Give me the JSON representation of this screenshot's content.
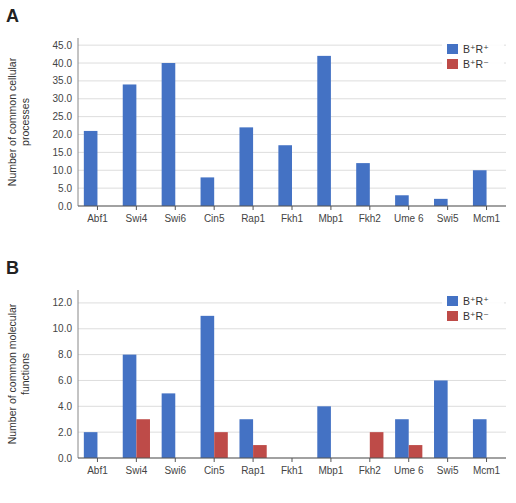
{
  "chart_data": [
    {
      "type": "bar",
      "title": "A",
      "categories": [
        "Abf1",
        "Swi4",
        "Swi6",
        "Cin5",
        "Rap1",
        "Fkh1",
        "Mbp1",
        "Fkh2",
        "Ume 6",
        "Swi5",
        "Mcm1"
      ],
      "series": [
        {
          "name": "B⁺R⁺",
          "color": "#4472C4",
          "values": [
            21,
            34,
            40,
            8,
            22,
            17,
            42,
            12,
            3,
            2,
            10
          ]
        },
        {
          "name": "B⁺R⁻",
          "color": "#BE4B48",
          "values": [
            0,
            0,
            0,
            0,
            0,
            0,
            0,
            0,
            0,
            0,
            0
          ]
        }
      ],
      "ylabel": "Number of common cellular\nprocesses",
      "ylim": [
        0,
        47
      ],
      "yticks": [
        {
          "value": 0,
          "label": "0.0"
        },
        {
          "value": 5,
          "label": "5.0"
        },
        {
          "value": 10,
          "label": "10.0"
        },
        {
          "value": 15,
          "label": "15.0"
        },
        {
          "value": 20,
          "label": "20.0"
        },
        {
          "value": 25,
          "label": "25.0"
        },
        {
          "value": 30,
          "label": "30.0"
        },
        {
          "value": 35,
          "label": "35.0"
        },
        {
          "value": 40,
          "label": "40.0"
        },
        {
          "value": 45,
          "label": "45.0"
        }
      ],
      "grid": true,
      "legend": "upper right"
    },
    {
      "type": "bar",
      "title": "B",
      "categories": [
        "Abf1",
        "Swi4",
        "Swi6",
        "Cin5",
        "Rap1",
        "Fkh1",
        "Mbp1",
        "Fkh2",
        "Ume 6",
        "Swi5",
        "Mcm1"
      ],
      "series": [
        {
          "name": "B⁺R⁺",
          "color": "#4472C4",
          "values": [
            2,
            8,
            5,
            11,
            3,
            0,
            4,
            0,
            3,
            6,
            3
          ]
        },
        {
          "name": "B⁺R⁻",
          "color": "#BE4B48",
          "values": [
            0,
            3,
            0,
            2,
            1,
            0,
            0,
            2,
            1,
            0,
            0
          ]
        }
      ],
      "ylabel": "Number of common molecular\nfunctions",
      "ylim": [
        0,
        13
      ],
      "yticks": [
        {
          "value": 0,
          "label": "0.0"
        },
        {
          "value": 2,
          "label": "2.0"
        },
        {
          "value": 4,
          "label": "4.0"
        },
        {
          "value": 6,
          "label": "6.0"
        },
        {
          "value": 8,
          "label": "8.0"
        },
        {
          "value": 10,
          "label": "10.0"
        },
        {
          "value": 12,
          "label": "12.0"
        }
      ],
      "grid": true,
      "legend": "upper right"
    }
  ]
}
